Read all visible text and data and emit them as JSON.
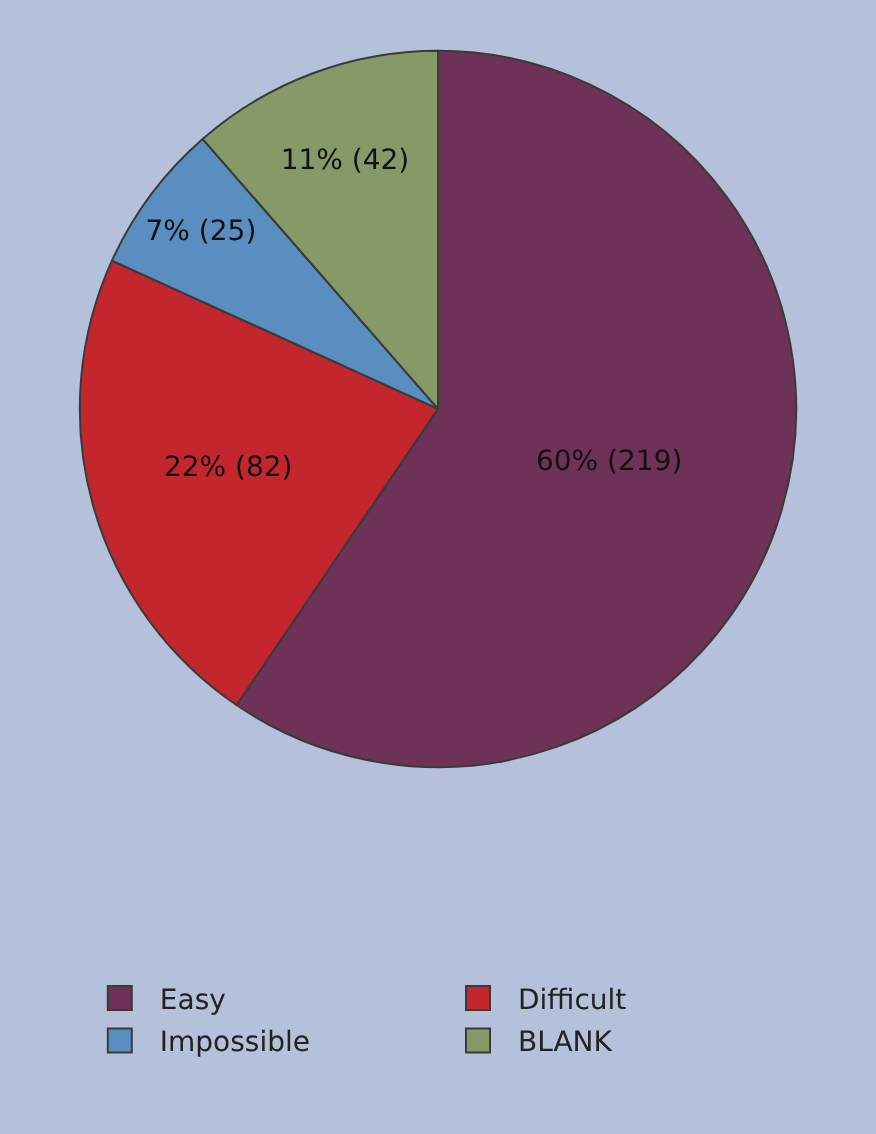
{
  "chart_data": {
    "type": "pie",
    "categories": [
      "Easy",
      "Difficult",
      "Impossible",
      "BLANK"
    ],
    "values": [
      219,
      82,
      25,
      42
    ],
    "colors": [
      "#6e3158",
      "#c4262e",
      "#5a8dc0",
      "#859a66"
    ],
    "value_labels": [
      "60% (219)",
      "22% (82)",
      "7% (25)",
      "11% (42)"
    ],
    "legend": "bottom"
  }
}
